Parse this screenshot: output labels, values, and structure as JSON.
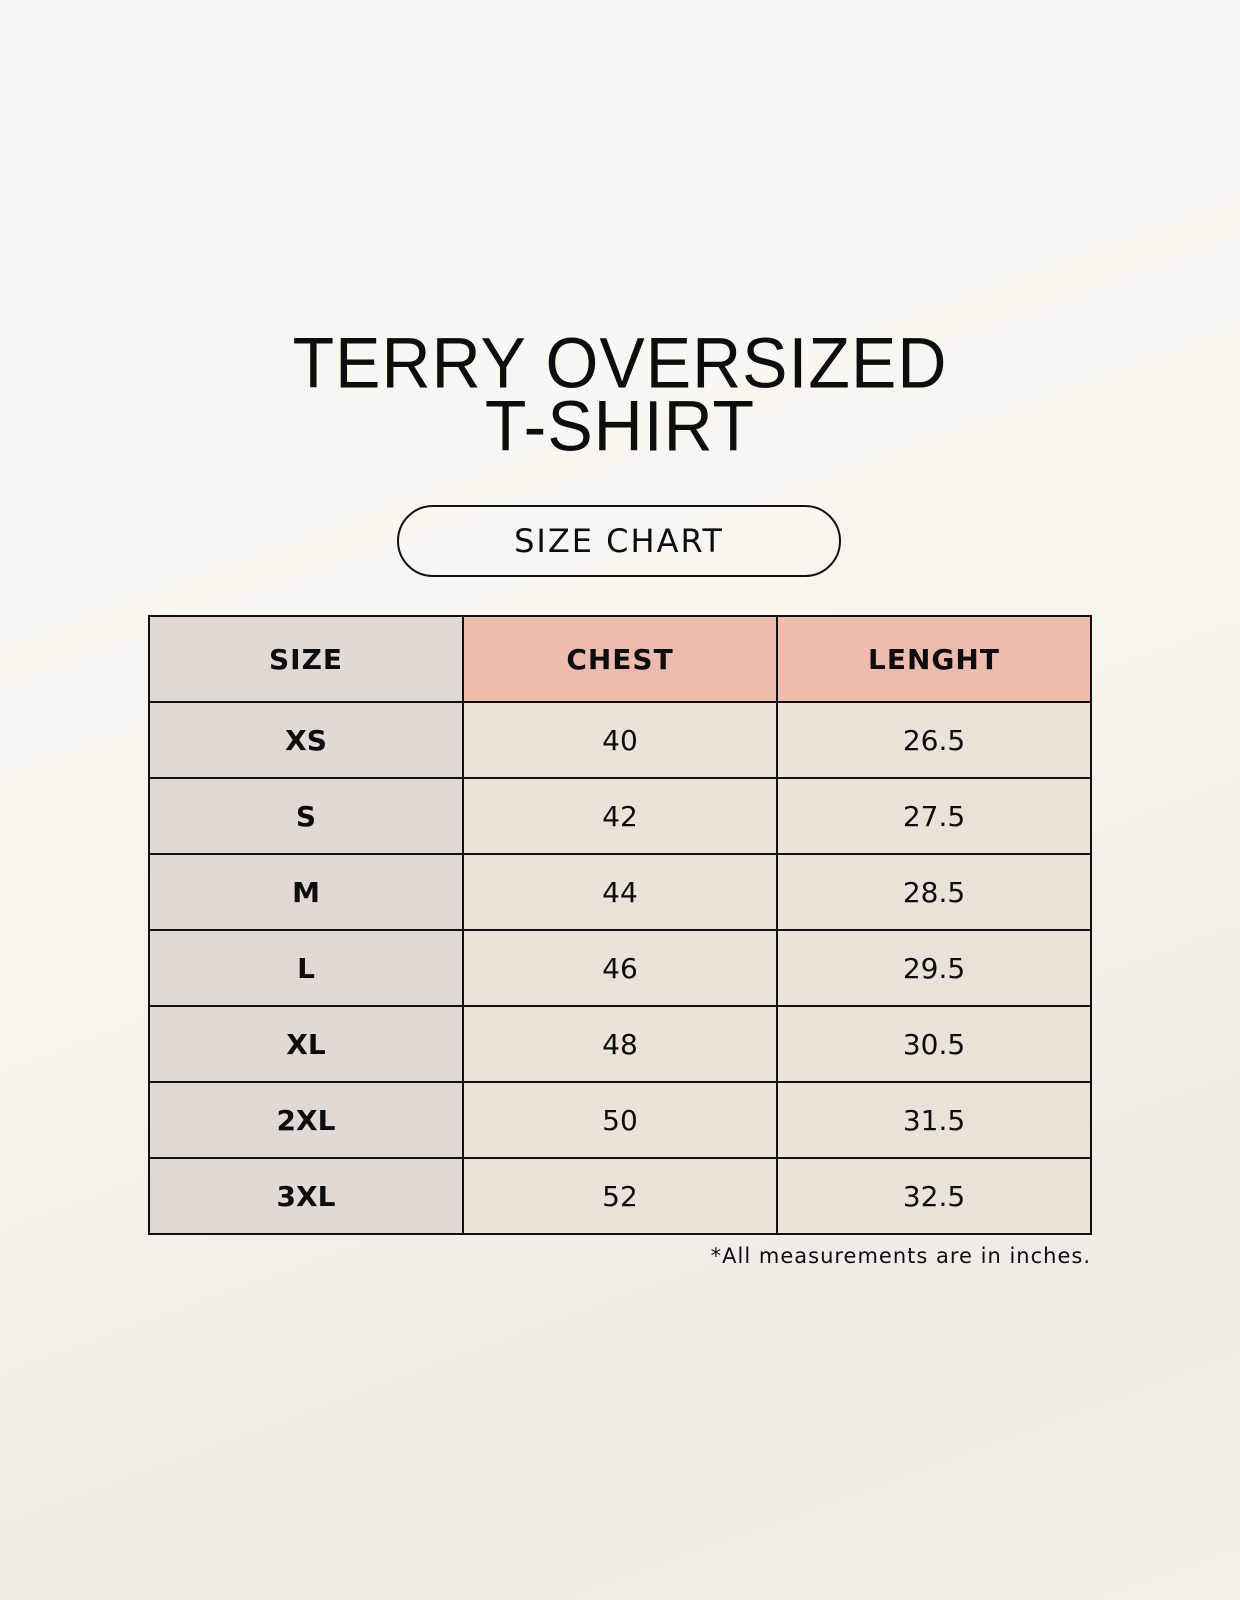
{
  "title_line1": "TERRY OVERSIZED",
  "title_line2": "T-SHIRT",
  "subtitle": "SIZE CHART",
  "table": {
    "headers": [
      "SIZE",
      "CHEST",
      "LENGHT"
    ],
    "rows": [
      [
        "XS",
        "40",
        "26.5"
      ],
      [
        "S",
        "42",
        "27.5"
      ],
      [
        "M",
        "44",
        "28.5"
      ],
      [
        "L",
        "46",
        "29.5"
      ],
      [
        "XL",
        "48",
        "30.5"
      ],
      [
        "2XL",
        "50",
        "31.5"
      ],
      [
        "3XL",
        "52",
        "32.5"
      ]
    ]
  },
  "note": "*All measurements are in inches.",
  "colors": {
    "size_column": "#e0d9d4",
    "header_accent": "#edbcaf",
    "value_cells": "#ebe3d9"
  }
}
